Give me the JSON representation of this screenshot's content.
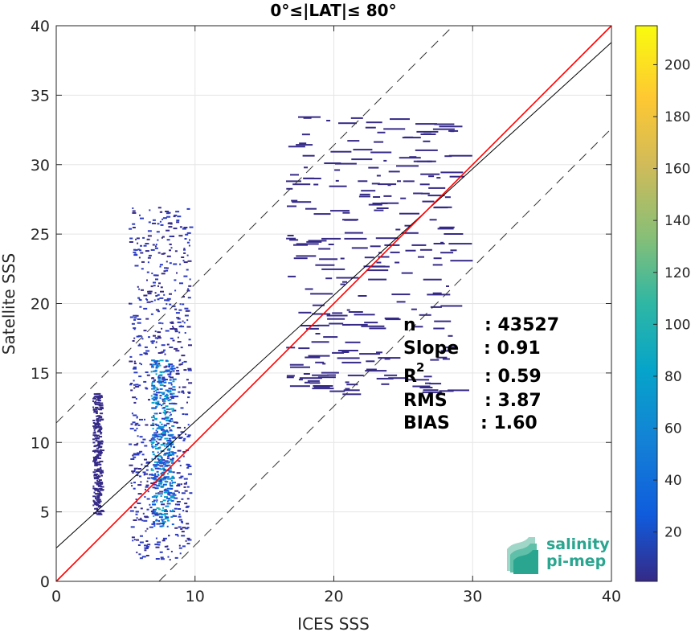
{
  "chart_data": {
    "type": "scatter",
    "title": "0°≤|LAT|≤ 80°",
    "xlabel": "ICES SSS",
    "ylabel": "Satellite SSS",
    "xlim": [
      0,
      40
    ],
    "ylim": [
      0,
      40
    ],
    "xticks": [
      "0",
      "10",
      "20",
      "30",
      "40"
    ],
    "yticks": [
      "0",
      "5",
      "10",
      "15",
      "20",
      "25",
      "30",
      "35",
      "40"
    ],
    "grid": true,
    "reference_lines": {
      "identity": {
        "slope": 1,
        "intercept": 0,
        "color": "#ff0000"
      },
      "fit": {
        "slope": 0.91,
        "intercept": 2.4,
        "color": "#000000"
      },
      "bounds": [
        {
          "slope": 1,
          "intercept": 11.4,
          "style": "dashed"
        },
        {
          "slope": 1,
          "intercept": -7.4,
          "style": "dashed"
        }
      ]
    },
    "density_clusters": [
      {
        "x_range": [
          2.6,
          3.2
        ],
        "y_range": [
          4.8,
          13.6
        ],
        "density": 3
      },
      {
        "x_range": [
          5.2,
          9.6
        ],
        "y_range": [
          1.6,
          27
        ],
        "density": 40
      },
      {
        "x_range": [
          6.8,
          8.4
        ],
        "y_range": [
          4,
          16
        ],
        "density": 110
      },
      {
        "x_range": [
          16.5,
          28.5
        ],
        "y_range": [
          13.5,
          33.5
        ],
        "density": 5
      }
    ],
    "colorbar": {
      "ticks": [
        "20",
        "40",
        "60",
        "80",
        "100",
        "120",
        "140",
        "160",
        "180",
        "200"
      ],
      "range": [
        1,
        215
      ],
      "colormap": "parula"
    },
    "stats": {
      "n_label": "n",
      "n_value": ": 43527",
      "slope_label": "Slope",
      "slope_value": ": 0.91",
      "r2_label": "R",
      "r2_sup": "2",
      "r2_value": ": 0.59",
      "rms_label": "RMS",
      "rms_value": ": 3.87",
      "bias_label": "BIAS",
      "bias_value": ": 1.60"
    }
  },
  "logo": {
    "line1": "salinity",
    "line2": "pi-mep",
    "color": "#2aa58f"
  }
}
